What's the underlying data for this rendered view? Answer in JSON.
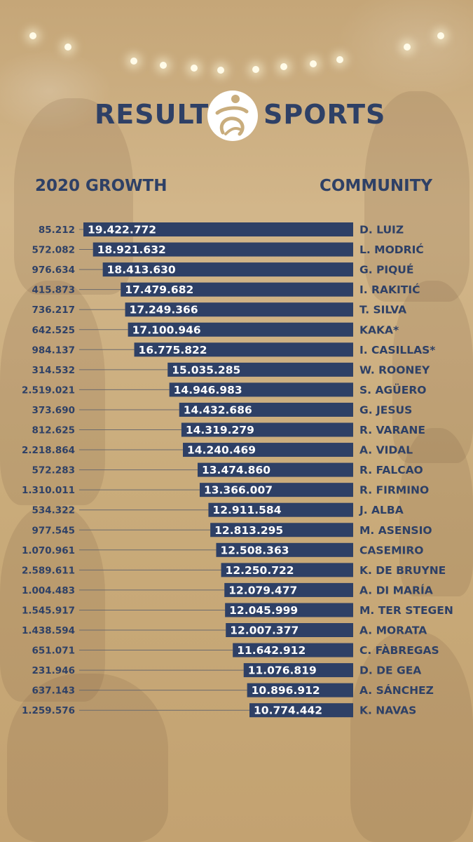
{
  "brand": {
    "left_word": "RESULT",
    "right_word": "SPORTS"
  },
  "headers": {
    "growth": "2020 GROWTH",
    "community": "COMMUNITY"
  },
  "colors": {
    "bar": "#2e4066",
    "text": "#2e4066",
    "background": "#c9ad7d",
    "connector": "#6b6a6e"
  },
  "chart_data": {
    "type": "bar",
    "orientation": "horizontal",
    "bar_alignment": "right",
    "categories": [
      "D. LUIZ",
      "L. MODRIĆ",
      "G. PIQUÉ",
      "I. RAKITIĆ",
      "T. SILVA",
      "KAKA*",
      "I. CASILLAS*",
      "W. ROONEY",
      "S. AGÜERO",
      "G. JESUS",
      "R. VARANE",
      "A. VIDAL",
      "R. FALCAO",
      "R. FIRMINO",
      "J. ALBA",
      "M. ASENSIO",
      "CASEMIRO",
      "K. DE BRUYNE",
      "A. DI MARÍA",
      "M. TER STEGEN",
      "A. MORATA",
      "C. FÀBREGAS",
      "D. DE GEA",
      "A. SÁNCHEZ",
      "K. NAVAS"
    ],
    "values": [
      19422772,
      18921632,
      18413630,
      17479682,
      17249366,
      17100946,
      16775822,
      15035285,
      14946983,
      14432686,
      14319279,
      14240469,
      13474860,
      13366007,
      12911584,
      12813295,
      12508363,
      12250722,
      12079477,
      12045999,
      12007377,
      11642912,
      11076819,
      10896912,
      10774442
    ],
    "value_labels": [
      "19.422.772",
      "18.921.632",
      "18.413.630",
      "17.479.682",
      "17.249.366",
      "17.100.946",
      "16.775.822",
      "15.035.285",
      "14.946.983",
      "14.432.686",
      "14.319.279",
      "14.240.469",
      "13.474.860",
      "13.366.007",
      "12.911.584",
      "12.813.295",
      "12.508.363",
      "12.250.722",
      "12.079.477",
      "12.045.999",
      "12.007.377",
      "11.642.912",
      "11.076.819",
      "10.896.912",
      "10.774.442"
    ],
    "growth_labels": [
      "85.212",
      "572.082",
      "976.634",
      "415.873",
      "736.217",
      "642.525",
      "984.137",
      "314.532",
      "2.519.021",
      "373.690",
      "812.625",
      "2.218.864",
      "572.283",
      "1.310.011",
      "534.322",
      "977.545",
      "1.070.961",
      "2.589.611",
      "1.004.483",
      "1.545.917",
      "1.438.594",
      "651.071",
      "231.946",
      "637.143",
      "1.259.576"
    ]
  }
}
